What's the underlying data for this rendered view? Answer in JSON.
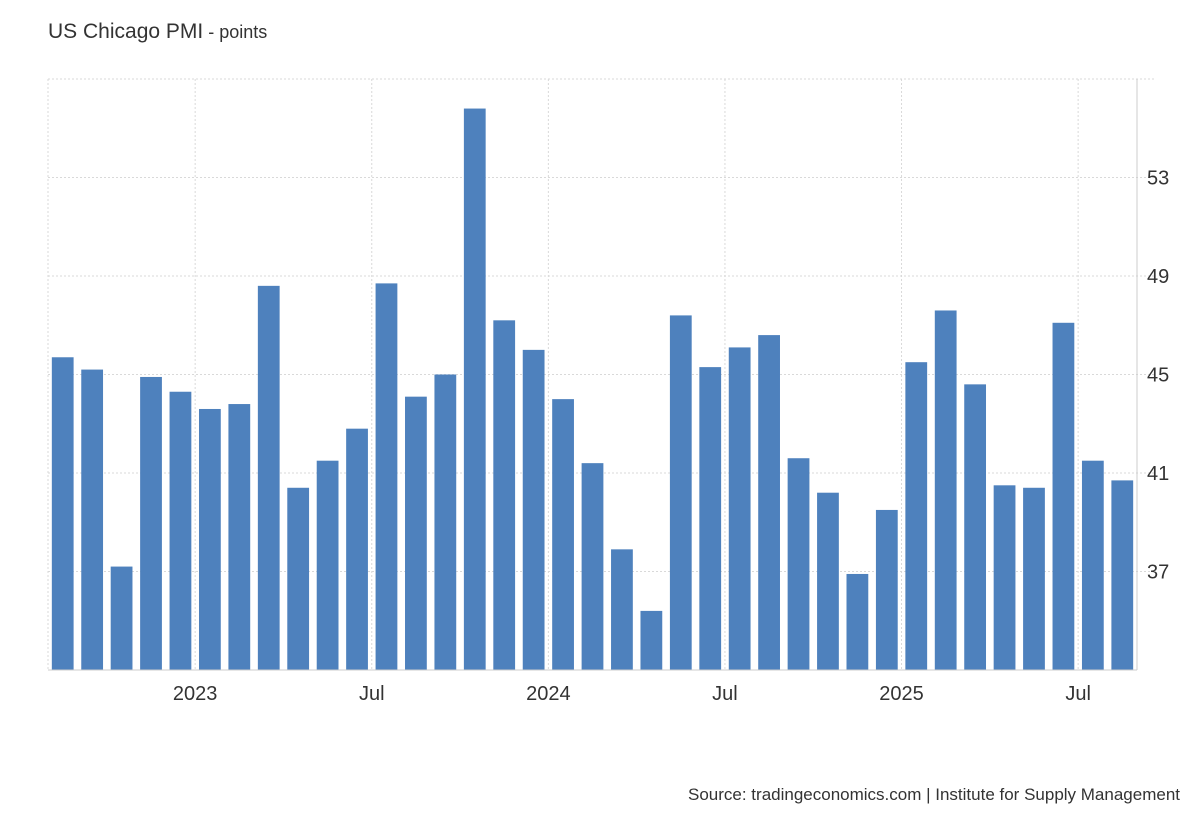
{
  "title": "US Chicago PMI",
  "unit_suffix": " - points",
  "source": "Source: tradingeconomics.com | Institute for Supply Management",
  "chart_data": {
    "type": "bar",
    "title": "US Chicago PMI",
    "ylabel": "points",
    "ylim": [
      33,
      57
    ],
    "yticks": [
      37,
      41,
      45,
      49,
      53
    ],
    "y_axis_position": "right",
    "grid": true,
    "bar_color": "#4e81bd",
    "x_labels": [
      {
        "label": "2023",
        "index": 4.5
      },
      {
        "label": "Jul",
        "index": 10.5
      },
      {
        "label": "2024",
        "index": 16.5
      },
      {
        "label": "Jul",
        "index": 22.5
      },
      {
        "label": "2025",
        "index": 28.5
      },
      {
        "label": "Jul",
        "index": 34.5
      }
    ],
    "categories": [
      "2022-08",
      "2022-09",
      "2022-10",
      "2022-11",
      "2022-12",
      "2023-01",
      "2023-02",
      "2023-03",
      "2023-04",
      "2023-05",
      "2023-06",
      "2023-07",
      "2023-08",
      "2023-09",
      "2023-10",
      "2023-11",
      "2023-12",
      "2024-01",
      "2024-02",
      "2024-03",
      "2024-04",
      "2024-05",
      "2024-06",
      "2024-07",
      "2024-08",
      "2024-09",
      "2024-10",
      "2024-11",
      "2024-12",
      "2025-01",
      "2025-02",
      "2025-03",
      "2025-04",
      "2025-05",
      "2025-06",
      "2025-07",
      "2025-08"
    ],
    "values": [
      45.7,
      45.2,
      37.2,
      44.9,
      44.3,
      43.6,
      43.8,
      48.6,
      40.4,
      41.5,
      42.8,
      48.7,
      44.1,
      45.0,
      55.8,
      47.2,
      46.0,
      44.0,
      41.4,
      37.9,
      35.4,
      47.4,
      45.3,
      46.1,
      46.6,
      41.6,
      40.2,
      36.9,
      39.5,
      45.5,
      47.6,
      44.6,
      40.5,
      40.4,
      47.1,
      41.5,
      40.7
    ]
  }
}
